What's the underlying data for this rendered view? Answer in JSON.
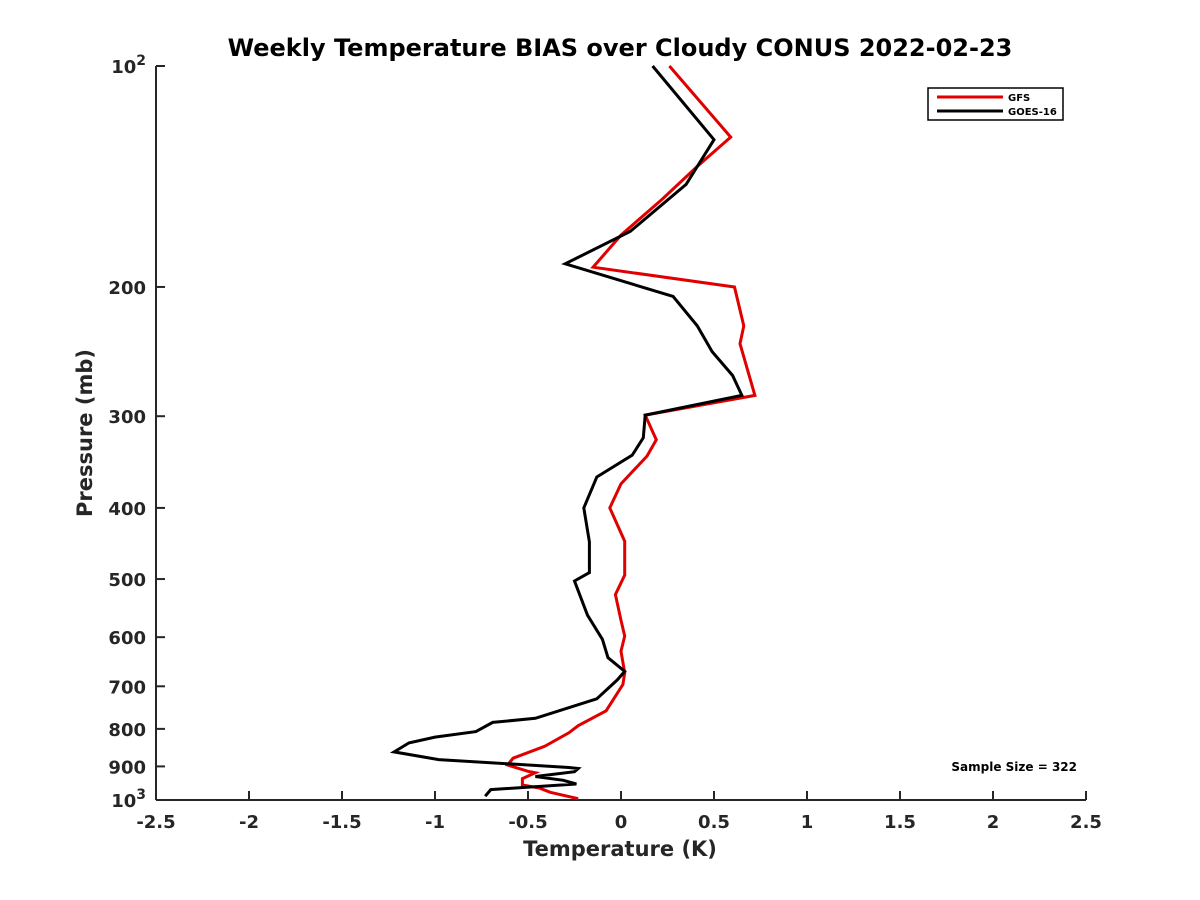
{
  "chart_data": {
    "type": "line",
    "title": "Weekly Temperature BIAS over Cloudy CONUS 2022-02-23",
    "xlabel": "Temperature (K)",
    "ylabel": "Pressure (mb)",
    "xlim": [
      -2.5,
      2.5
    ],
    "ylim": [
      100,
      1000
    ],
    "y_scale": "log",
    "y_reversed": true,
    "x_ticks": [
      -2.5,
      -2,
      -1.5,
      -1,
      -0.5,
      0,
      0.5,
      1,
      1.5,
      2,
      2.5
    ],
    "x_tick_labels": [
      "-2.5",
      "-2",
      "-1.5",
      "-1",
      "-0.5",
      "0",
      "0.5",
      "1",
      "1.5",
      "2",
      "2.5"
    ],
    "y_ticks": [
      100,
      200,
      300,
      400,
      500,
      600,
      700,
      800,
      900,
      1000
    ],
    "y_tick_labels": [
      {
        "base": "10",
        "sup": "2"
      },
      {
        "base": "200",
        "sup": ""
      },
      {
        "base": "300",
        "sup": ""
      },
      {
        "base": "400",
        "sup": ""
      },
      {
        "base": "500",
        "sup": ""
      },
      {
        "base": "600",
        "sup": ""
      },
      {
        "base": "700",
        "sup": ""
      },
      {
        "base": "800",
        "sup": ""
      },
      {
        "base": "900",
        "sup": ""
      },
      {
        "base": "10",
        "sup": "3"
      }
    ],
    "grid": false,
    "legend_position": "top-right",
    "annotation": "Sample Size = 322",
    "series": [
      {
        "name": "GFS",
        "color": "#e00000",
        "points": [
          [
            0.26,
            100
          ],
          [
            0.59,
            125
          ],
          [
            0.41,
            137
          ],
          [
            0.22,
            152
          ],
          [
            0.0,
            170
          ],
          [
            -0.15,
            188
          ],
          [
            0.61,
            200
          ],
          [
            0.66,
            226
          ],
          [
            0.64,
            239
          ],
          [
            0.72,
            281
          ],
          [
            0.13,
            299
          ],
          [
            0.19,
            323
          ],
          [
            0.14,
            340
          ],
          [
            0.0,
            371
          ],
          [
            -0.06,
            400
          ],
          [
            0.02,
            444
          ],
          [
            0.02,
            494
          ],
          [
            -0.03,
            525
          ],
          [
            0.0,
            569
          ],
          [
            0.02,
            598
          ],
          [
            0.0,
            627
          ],
          [
            0.02,
            671
          ],
          [
            0.01,
            696
          ],
          [
            -0.08,
            756
          ],
          [
            -0.23,
            792
          ],
          [
            -0.28,
            810
          ],
          [
            -0.41,
            845
          ],
          [
            -0.58,
            877
          ],
          [
            -0.61,
            896
          ],
          [
            -0.5,
            914
          ],
          [
            -0.46,
            918
          ],
          [
            -0.53,
            935
          ],
          [
            -0.53,
            954
          ],
          [
            -0.44,
            963
          ],
          [
            -0.38,
            976
          ],
          [
            -0.23,
            996
          ]
        ]
      },
      {
        "name": "GOES-16",
        "color": "#000000",
        "points": [
          [
            0.17,
            100
          ],
          [
            0.5,
            126
          ],
          [
            0.35,
            145
          ],
          [
            0.05,
            168
          ],
          [
            -0.3,
            186
          ],
          [
            0.28,
            206
          ],
          [
            0.41,
            226
          ],
          [
            0.49,
            245
          ],
          [
            0.6,
            264
          ],
          [
            0.65,
            281
          ],
          [
            0.13,
            299
          ],
          [
            0.12,
            321
          ],
          [
            0.06,
            339
          ],
          [
            -0.13,
            363
          ],
          [
            -0.2,
            400
          ],
          [
            -0.17,
            445
          ],
          [
            -0.17,
            490
          ],
          [
            -0.25,
            503
          ],
          [
            -0.18,
            560
          ],
          [
            -0.1,
            604
          ],
          [
            -0.07,
            640
          ],
          [
            0.02,
            668
          ],
          [
            -0.02,
            686
          ],
          [
            -0.13,
            728
          ],
          [
            -0.46,
            774
          ],
          [
            -0.69,
            784
          ],
          [
            -0.78,
            807
          ],
          [
            -1.0,
            821
          ],
          [
            -1.14,
            836
          ],
          [
            -1.22,
            860
          ],
          [
            -0.98,
            881
          ],
          [
            -0.28,
            903
          ],
          [
            -0.23,
            906
          ],
          [
            -0.25,
            915
          ],
          [
            -0.46,
            929
          ],
          [
            -0.31,
            940
          ],
          [
            -0.24,
            951
          ],
          [
            -0.7,
            968
          ],
          [
            -0.73,
            988
          ]
        ]
      }
    ]
  }
}
